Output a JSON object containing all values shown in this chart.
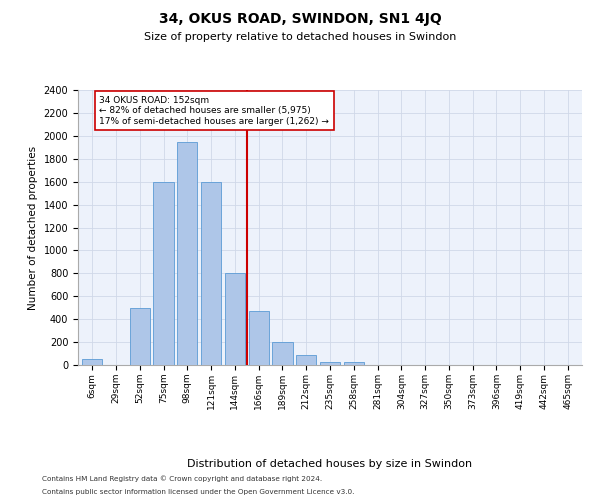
{
  "title": "34, OKUS ROAD, SWINDON, SN1 4JQ",
  "subtitle": "Size of property relative to detached houses in Swindon",
  "xlabel": "Distribution of detached houses by size in Swindon",
  "ylabel": "Number of detached properties",
  "footnote1": "Contains HM Land Registry data © Crown copyright and database right 2024.",
  "footnote2": "Contains public sector information licensed under the Open Government Licence v3.0.",
  "annotation_line1": "34 OKUS ROAD: 152sqm",
  "annotation_line2": "← 82% of detached houses are smaller (5,975)",
  "annotation_line3": "17% of semi-detached houses are larger (1,262) →",
  "bar_labels": [
    "6sqm",
    "29sqm",
    "52sqm",
    "75sqm",
    "98sqm",
    "121sqm",
    "144sqm",
    "166sqm",
    "189sqm",
    "212sqm",
    "235sqm",
    "258sqm",
    "281sqm",
    "304sqm",
    "327sqm",
    "350sqm",
    "373sqm",
    "396sqm",
    "419sqm",
    "442sqm",
    "465sqm"
  ],
  "bar_values": [
    50,
    0,
    500,
    1600,
    1950,
    1600,
    800,
    470,
    200,
    90,
    30,
    25,
    0,
    0,
    0,
    0,
    0,
    0,
    0,
    0,
    0
  ],
  "bar_color": "#aec6e8",
  "bar_edge_color": "#5b9bd5",
  "vline_color": "#cc0000",
  "ylim": [
    0,
    2400
  ],
  "yticks": [
    0,
    200,
    400,
    600,
    800,
    1000,
    1200,
    1400,
    1600,
    1800,
    2000,
    2200,
    2400
  ],
  "annotation_box_edge": "#cc0000",
  "grid_color": "#d0d8e8",
  "background_color": "#edf2fb"
}
